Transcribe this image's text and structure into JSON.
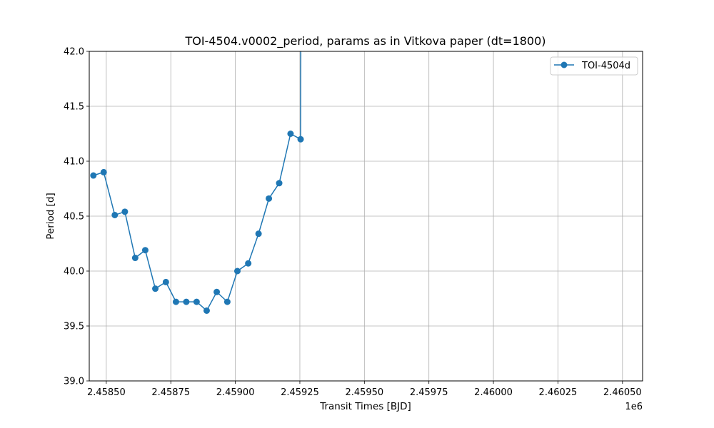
{
  "chart_data": {
    "type": "line",
    "title": "TOI-4504.v0002_period, params as in Vitkova paper (dt=1800)",
    "xlabel": "Transit Times [BJD]",
    "ylabel": "Period [d]",
    "x_offset_label": "1e6",
    "xlim": [
      2458434,
      2460578
    ],
    "ylim": [
      39.0,
      42.0
    ],
    "xticks": [
      2458500,
      2458750,
      2459000,
      2459250,
      2459500,
      2459750,
      2460000,
      2460250,
      2460500
    ],
    "xtick_labels": [
      "2.45850",
      "2.45875",
      "2.45900",
      "2.45925",
      "2.45950",
      "2.45975",
      "2.46000",
      "2.46025",
      "2.46050"
    ],
    "yticks": [
      39.0,
      39.5,
      40.0,
      40.5,
      41.0,
      41.5,
      42.0
    ],
    "ytick_labels": [
      "39.0",
      "39.5",
      "40.0",
      "40.5",
      "41.0",
      "41.5",
      "42.0"
    ],
    "grid": true,
    "legend_position": "top-right",
    "series": [
      {
        "name": "TOI-4504d",
        "color": "#1f77b4",
        "marker": "circle",
        "x": [
          2458450,
          2458490,
          2458533,
          2458572,
          2458612,
          2458651,
          2458690,
          2458731,
          2458770,
          2458810,
          2458850,
          2458889,
          2458928,
          2458969,
          2459008,
          2459050,
          2459090,
          2459130,
          2459170,
          2459214,
          2459253,
          2459255
        ],
        "y": [
          40.87,
          40.9,
          40.51,
          40.54,
          40.12,
          40.19,
          39.84,
          39.9,
          39.72,
          39.72,
          39.72,
          39.64,
          39.81,
          39.72,
          40.0,
          40.07,
          40.34,
          40.66,
          40.8,
          41.25,
          41.2,
          43.5
        ]
      }
    ]
  }
}
